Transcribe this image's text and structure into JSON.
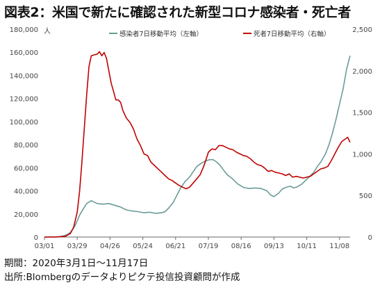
{
  "title": "図表2：米国で新たに確認された新型コロナ感染者・死亡者",
  "notes": {
    "period": "期間：2020年3月1日～11月17日",
    "source": "出所:Blombergのデータよりピクテ投信投資顧問が作成"
  },
  "chart_data": {
    "type": "line",
    "left_axis": {
      "unit": "人",
      "ylim": [
        0,
        180000
      ],
      "ticks": [
        "0",
        "20,000",
        "40,000",
        "60,000",
        "80,000",
        "100,000",
        "120,000",
        "140,000",
        "160,000",
        "180,000"
      ]
    },
    "right_axis": {
      "ylim": [
        0,
        2500
      ],
      "ticks": [
        "0",
        "500",
        "1,000",
        "1,500",
        "2,000",
        "2,500"
      ]
    },
    "x_tick_labels": [
      "03/01",
      "03/29",
      "04/26",
      "05/24",
      "06/21",
      "07/19",
      "08/16",
      "09/13",
      "10/11",
      "11/08"
    ],
    "x_range_days": [
      0,
      261
    ],
    "grid": false,
    "legend_position": "top",
    "series": [
      {
        "name": "感染者7日移動平均（左軸）",
        "axis": "left",
        "color": "#6a9b98",
        "x": [
          0,
          10,
          14,
          17,
          20,
          22,
          24,
          26,
          28,
          30,
          33,
          36,
          40,
          45,
          50,
          55,
          60,
          65,
          70,
          75,
          80,
          85,
          90,
          95,
          100,
          103,
          106,
          110,
          113,
          116,
          118,
          120,
          122,
          124,
          126,
          130,
          134,
          138,
          141,
          144,
          147,
          150,
          153,
          156,
          160,
          165,
          170,
          175,
          180,
          185,
          190,
          193,
          196,
          200,
          203,
          206,
          210,
          213,
          216,
          220,
          223,
          226,
          230,
          233,
          236,
          240,
          243,
          246,
          249,
          252,
          255,
          258,
          261
        ],
        "y": [
          0,
          200,
          500,
          1200,
          2500,
          4000,
          6500,
          9500,
          14000,
          19000,
          24000,
          29000,
          31500,
          29000,
          28500,
          29000,
          27500,
          26000,
          23500,
          22500,
          22000,
          21000,
          21500,
          20500,
          21000,
          22000,
          25000,
          30000,
          36000,
          42000,
          45000,
          48000,
          50000,
          52000,
          55000,
          61000,
          64000,
          66000,
          67000,
          67000,
          65000,
          62000,
          58000,
          54000,
          51000,
          46000,
          43000,
          42000,
          42500,
          42000,
          40000,
          36500,
          35000,
          38000,
          41500,
          43000,
          44000,
          42500,
          43500,
          46000,
          49000,
          52000,
          56000,
          61000,
          65000,
          72000,
          80000,
          90000,
          102000,
          115000,
          128000,
          145000,
          157000
        ]
      },
      {
        "name": "死者7日移動平均（右軸）",
        "axis": "right",
        "color": "#c00000",
        "x": [
          0,
          10,
          18,
          22,
          25,
          28,
          30,
          32,
          34,
          36,
          38,
          40,
          42,
          45,
          47,
          49,
          51,
          53,
          55,
          57,
          59,
          61,
          63,
          65,
          67,
          70,
          73,
          76,
          79,
          82,
          85,
          88,
          91,
          94,
          97,
          100,
          103,
          106,
          109,
          112,
          115,
          118,
          121,
          124,
          127,
          130,
          133,
          136,
          138,
          140,
          143,
          146,
          149,
          152,
          155,
          158,
          161,
          164,
          167,
          170,
          173,
          176,
          179,
          182,
          185,
          188,
          191,
          194,
          197,
          200,
          203,
          206,
          209,
          212,
          215,
          218,
          221,
          224,
          227,
          230,
          233,
          236,
          239,
          242,
          245,
          248,
          251,
          254,
          257,
          259,
          261
        ],
        "y": [
          0,
          0,
          10,
          40,
          120,
          300,
          550,
          900,
          1300,
          1700,
          2050,
          2180,
          2190,
          2200,
          2230,
          2180,
          2220,
          2150,
          2000,
          1850,
          1750,
          1650,
          1650,
          1620,
          1520,
          1430,
          1380,
          1300,
          1180,
          1100,
          1000,
          980,
          900,
          860,
          820,
          780,
          740,
          700,
          680,
          650,
          620,
          600,
          580,
          600,
          650,
          700,
          750,
          850,
          930,
          1020,
          1060,
          1050,
          1100,
          1100,
          1080,
          1060,
          1050,
          1020,
          1000,
          980,
          970,
          940,
          900,
          870,
          860,
          830,
          790,
          800,
          780,
          770,
          760,
          740,
          760,
          720,
          730,
          720,
          710,
          720,
          730,
          760,
          790,
          820,
          830,
          850,
          920,
          1000,
          1080,
          1150,
          1180,
          1200,
          1140
        ]
      }
    ]
  }
}
